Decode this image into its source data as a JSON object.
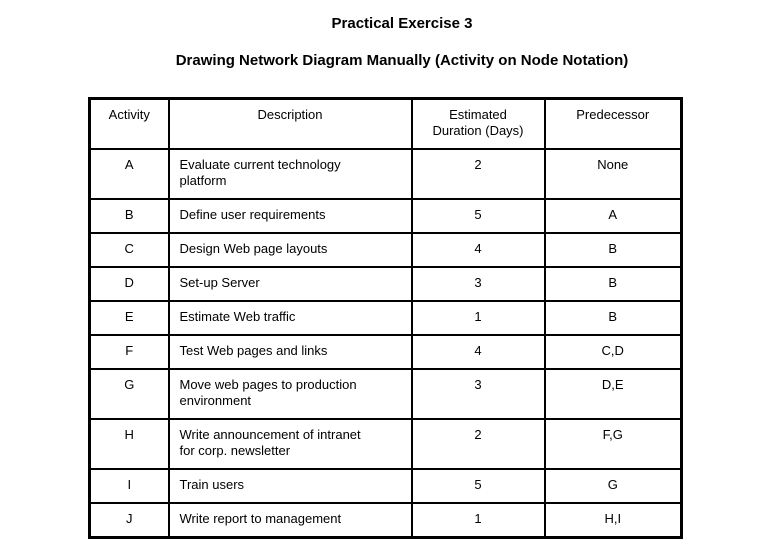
{
  "page": {
    "title": "Practical Exercise 3",
    "subtitle": "Drawing Network Diagram Manually (Activity on Node Notation)"
  },
  "table": {
    "headers": [
      "Activity",
      "Description",
      "Estimated Duration (Days)",
      "Predecessor"
    ],
    "rows": [
      {
        "activity": "A",
        "description": "Evaluate current technology platform",
        "duration": "2",
        "predecessor": "None"
      },
      {
        "activity": "B",
        "description": "Define user requirements",
        "duration": "5",
        "predecessor": "A"
      },
      {
        "activity": "C",
        "description": "Design Web page layouts",
        "duration": "4",
        "predecessor": "B"
      },
      {
        "activity": "D",
        "description": "Set-up Server",
        "duration": "3",
        "predecessor": "B"
      },
      {
        "activity": "E",
        "description": "Estimate Web traffic",
        "duration": "1",
        "predecessor": "B"
      },
      {
        "activity": "F",
        "description": "Test Web pages and links",
        "duration": "4",
        "predecessor": "C,D"
      },
      {
        "activity": "G",
        "description": "Move web pages to production environment",
        "duration": "3",
        "predecessor": "D,E"
      },
      {
        "activity": "H",
        "description": "Write announcement of intranet for corp. newsletter",
        "duration": "2",
        "predecessor": "F,G"
      },
      {
        "activity": "I",
        "description": "Train users",
        "duration": "5",
        "predecessor": "G"
      },
      {
        "activity": "J",
        "description": "Write report to management",
        "duration": "1",
        "predecessor": "H,I"
      }
    ]
  },
  "colors": {
    "background": "#ffffff",
    "text": "#000000",
    "border": "#000000"
  }
}
